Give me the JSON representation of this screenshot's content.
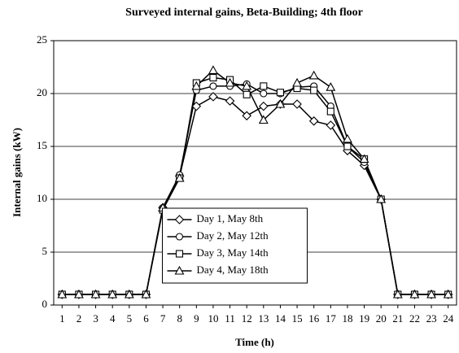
{
  "chart_data": {
    "type": "line",
    "title": "Surveyed internal gains, Beta-Building; 4th floor",
    "x_label": "Time (h)",
    "y_label": "Internal gains (kW)",
    "x": [
      1,
      2,
      3,
      4,
      5,
      6,
      7,
      8,
      9,
      10,
      11,
      12,
      13,
      14,
      15,
      16,
      17,
      18,
      19,
      20,
      21,
      22,
      23,
      24
    ],
    "series": [
      {
        "name": "Day 1, May 8th",
        "color": "#000000",
        "marker": "diamond",
        "values": [
          1,
          1,
          1,
          1,
          1,
          1,
          9.2,
          12.2,
          18.8,
          19.7,
          19.3,
          17.9,
          18.8,
          19.0,
          19.0,
          17.4,
          17.0,
          14.6,
          13.2,
          10,
          1,
          1,
          1,
          1
        ]
      },
      {
        "name": "Day 2, May 12th",
        "color": "#000000",
        "marker": "circle",
        "values": [
          1,
          1,
          1,
          1,
          1,
          1,
          9.2,
          12.3,
          20.3,
          20.7,
          20.7,
          20.9,
          20.0,
          20.0,
          20.6,
          20.7,
          18.8,
          15.0,
          13.5,
          10,
          1,
          1,
          1,
          1
        ]
      },
      {
        "name": "Day 3, May 14th",
        "color": "#000000",
        "marker": "square",
        "values": [
          1,
          1,
          1,
          1,
          1,
          1,
          9.0,
          12.0,
          21.0,
          21.5,
          21.3,
          19.9,
          20.7,
          20.1,
          20.5,
          20.3,
          18.3,
          15.0,
          13.8,
          10,
          1,
          1,
          1,
          1
        ]
      },
      {
        "name": "Day 4, May 18th",
        "color": "#000000",
        "marker": "triangle",
        "values": [
          1,
          1,
          1,
          1,
          1,
          1,
          9.2,
          12.0,
          20.7,
          22.2,
          21.0,
          20.7,
          17.5,
          19.0,
          21.0,
          21.7,
          20.6,
          15.7,
          13.8,
          10,
          1,
          1,
          1,
          1
        ]
      }
    ],
    "xlim": [
      0.5,
      24.5
    ],
    "xticks": [
      1,
      2,
      3,
      4,
      5,
      6,
      7,
      8,
      9,
      10,
      11,
      12,
      13,
      14,
      15,
      16,
      17,
      18,
      19,
      20,
      21,
      22,
      23,
      24
    ],
    "ylim": [
      0,
      25
    ],
    "yticks": [
      0,
      5,
      10,
      15,
      20,
      25
    ],
    "grid": true,
    "legend_position": "center"
  }
}
